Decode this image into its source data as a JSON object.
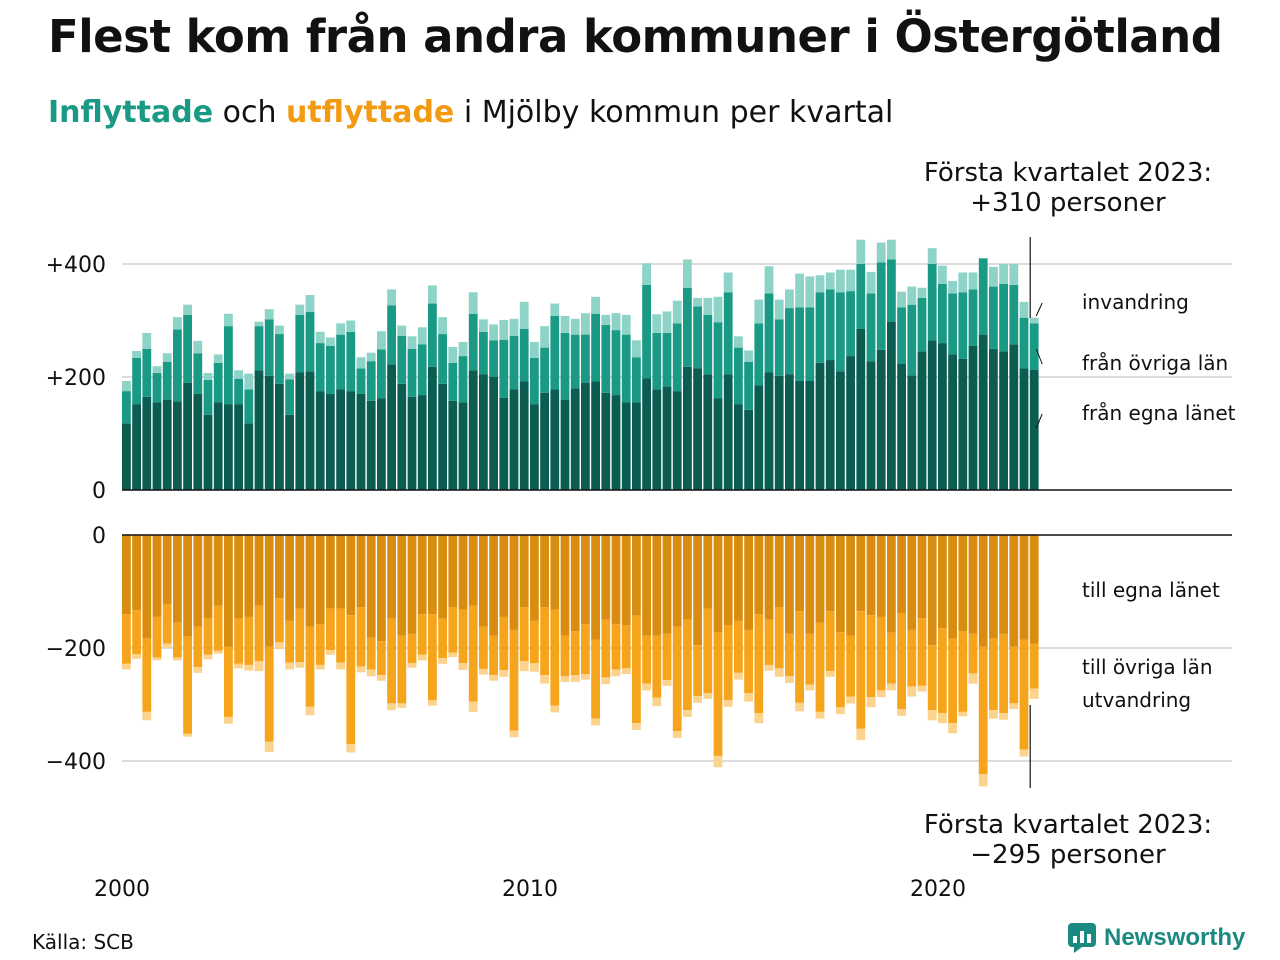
{
  "title": "Flest kom från andra kommuner i Östergötland",
  "subtitle": {
    "in_word": "Inflyttade",
    "and_word": "och",
    "out_word": "utflyttade",
    "rest": "i Mjölby kommun per kvartal"
  },
  "source": "Källa: SCB",
  "logo": {
    "text": "Newsworthy",
    "icon": "newsworthy-logo-icon"
  },
  "colors": {
    "in_own_county": "#0b5d52",
    "in_other_counties": "#1a9985",
    "in_immigration": "#8dd3c7",
    "out_own_county": "#d88d10",
    "out_other_counties": "#f7a41d",
    "out_emigration": "#fbd38d"
  },
  "annotation_top": {
    "line1": "Första kvartalet 2023:",
    "line2": "+310 personer"
  },
  "annotation_bottom": {
    "line1": "Första kvartalet 2023:",
    "line2": "−295 personer"
  },
  "chart_data": {
    "type": "bar",
    "stacked": true,
    "x_start": 2000,
    "frequency": "quarterly",
    "x_ticks": [
      {
        "value": 2000,
        "label": "2000"
      },
      {
        "value": 2010,
        "label": "2010"
      },
      {
        "value": 2020,
        "label": "2020"
      }
    ],
    "in_panel": {
      "ylim": [
        0,
        440
      ],
      "y_ticks": [
        {
          "value": 0,
          "label": "0"
        },
        {
          "value": 200,
          "label": "+200"
        },
        {
          "value": 400,
          "label": "+400"
        }
      ],
      "series": [
        {
          "name": "från egna länet",
          "values": [
            118,
            152,
            165,
            155,
            160,
            157,
            190,
            170,
            133,
            155,
            152,
            152,
            118,
            212,
            202,
            188,
            133,
            208,
            210,
            175,
            170,
            178,
            175,
            170,
            158,
            162,
            222,
            188,
            165,
            168,
            218,
            188,
            158,
            155,
            212,
            205,
            200,
            163,
            178,
            192,
            152,
            172,
            178,
            160,
            180,
            190,
            192,
            172,
            168,
            155,
            155,
            198,
            178,
            183,
            175,
            218,
            215,
            205,
            162,
            205,
            152,
            142,
            185,
            208,
            202,
            205,
            193,
            193,
            225,
            230,
            210,
            237,
            285,
            228,
            248,
            298,
            223,
            203,
            245,
            265,
            260,
            240,
            232,
            255,
            275,
            250,
            245,
            258,
            215,
            213
          ]
        },
        {
          "name": "från övriga län",
          "values": [
            57,
            82,
            85,
            52,
            67,
            127,
            120,
            72,
            62,
            70,
            138,
            45,
            60,
            78,
            100,
            88,
            63,
            102,
            105,
            85,
            85,
            97,
            105,
            45,
            70,
            87,
            105,
            85,
            85,
            90,
            112,
            88,
            67,
            82,
            100,
            75,
            65,
            103,
            95,
            93,
            82,
            80,
            130,
            118,
            95,
            85,
            120,
            120,
            115,
            120,
            80,
            165,
            100,
            95,
            120,
            140,
            110,
            105,
            135,
            145,
            100,
            85,
            110,
            140,
            100,
            117,
            130,
            130,
            125,
            125,
            140,
            115,
            115,
            120,
            155,
            110,
            100,
            125,
            95,
            135,
            105,
            108,
            118,
            100,
            135,
            110,
            120,
            105,
            90,
            82
          ]
        },
        {
          "name": "invandring",
          "values": [
            18,
            12,
            28,
            12,
            15,
            22,
            18,
            22,
            12,
            15,
            22,
            15,
            28,
            8,
            18,
            15,
            10,
            18,
            30,
            20,
            15,
            20,
            20,
            20,
            15,
            32,
            28,
            18,
            22,
            30,
            32,
            30,
            28,
            25,
            38,
            22,
            28,
            35,
            30,
            48,
            28,
            38,
            22,
            30,
            28,
            38,
            30,
            18,
            30,
            35,
            30,
            38,
            33,
            38,
            40,
            50,
            15,
            30,
            45,
            35,
            20,
            20,
            42,
            48,
            35,
            33,
            60,
            55,
            30,
            30,
            40,
            38,
            43,
            38,
            35,
            35,
            28,
            32,
            18,
            28,
            32,
            22,
            35,
            30,
            0,
            35,
            35,
            37,
            28,
            10
          ]
        }
      ]
    },
    "out_panel": {
      "ylim": [
        -450,
        0
      ],
      "y_ticks": [
        {
          "value": 0,
          "label": "0"
        },
        {
          "value": -200,
          "label": "−200"
        },
        {
          "value": -400,
          "label": "−400"
        }
      ],
      "series": [
        {
          "name": "till egna länet",
          "values": [
            -140,
            -133,
            -183,
            -145,
            -122,
            -155,
            -180,
            -162,
            -148,
            -125,
            -198,
            -148,
            -145,
            -125,
            -198,
            -112,
            -152,
            -130,
            -162,
            -158,
            -130,
            -130,
            -142,
            -128,
            -182,
            -188,
            -148,
            -178,
            -175,
            -140,
            -140,
            -148,
            -128,
            -132,
            -125,
            -162,
            -178,
            -145,
            -168,
            -128,
            -152,
            -128,
            -132,
            -178,
            -170,
            -158,
            -185,
            -150,
            -158,
            -160,
            -143,
            -178,
            -178,
            -175,
            -162,
            -150,
            -195,
            -130,
            -173,
            -160,
            -152,
            -168,
            -140,
            -150,
            -128,
            -175,
            -135,
            -175,
            -155,
            -135,
            -172,
            -178,
            -135,
            -142,
            -145,
            -173,
            -138,
            -168,
            -147,
            -195,
            -165,
            -183,
            -170,
            -175,
            -198,
            -183,
            -175,
            -198,
            -185,
            -192
          ]
        },
        {
          "name": "till övriga län",
          "values": [
            -88,
            -78,
            -130,
            -72,
            -70,
            -62,
            -172,
            -72,
            -64,
            -80,
            -124,
            -80,
            -85,
            -98,
            -168,
            -78,
            -74,
            -95,
            -142,
            -72,
            -74,
            -96,
            -228,
            -105,
            -56,
            -60,
            -150,
            -120,
            -52,
            -72,
            -152,
            -70,
            -80,
            -95,
            -170,
            -75,
            -70,
            -94,
            -178,
            -95,
            -75,
            -120,
            -170,
            -72,
            -78,
            -88,
            -140,
            -102,
            -80,
            -76,
            -190,
            -85,
            -110,
            -82,
            -185,
            -160,
            -90,
            -150,
            -218,
            -132,
            -92,
            -112,
            -175,
            -80,
            -108,
            -75,
            -162,
            -90,
            -158,
            -106,
            -133,
            -108,
            -208,
            -145,
            -130,
            -90,
            -170,
            -100,
            -120,
            -115,
            -150,
            -150,
            -143,
            -70,
            -225,
            -127,
            -140,
            -100,
            -195,
            -80
          ]
        },
        {
          "name": "utvandring",
          "values": [
            -10,
            -8,
            -15,
            -5,
            -8,
            -5,
            -5,
            -10,
            -8,
            -5,
            -12,
            -8,
            -10,
            -18,
            -18,
            -12,
            -12,
            -10,
            -15,
            -8,
            -8,
            -12,
            -15,
            -10,
            -12,
            -10,
            -12,
            -8,
            -8,
            -10,
            -10,
            -10,
            -8,
            -12,
            -18,
            -10,
            -10,
            -12,
            -12,
            -18,
            -15,
            -15,
            -12,
            -10,
            -12,
            -10,
            -12,
            -12,
            -12,
            -10,
            -12,
            -12,
            -15,
            -10,
            -12,
            -12,
            -12,
            -10,
            -20,
            -12,
            -12,
            -15,
            -18,
            -10,
            -15,
            -12,
            -15,
            -10,
            -12,
            -10,
            -12,
            -12,
            -20,
            -18,
            -12,
            -12,
            -12,
            -18,
            -10,
            -18,
            -18,
            -18,
            -8,
            -18,
            -22,
            -15,
            -12,
            -10,
            -12,
            -18
          ]
        }
      ]
    },
    "series_labels_in": [
      "invandring",
      "från övriga län",
      "från egna länet"
    ],
    "series_labels_out": [
      "till egna länet",
      "till övriga län",
      "utvandring"
    ]
  }
}
